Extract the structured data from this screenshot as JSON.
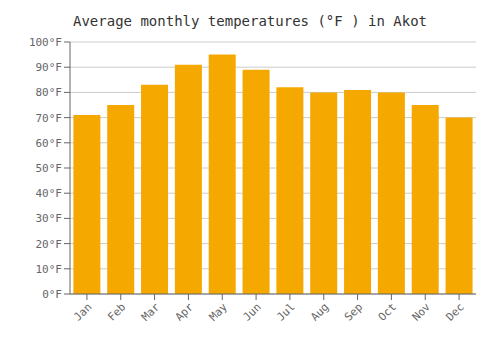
{
  "chart_data": {
    "type": "bar",
    "title": "Average monthly temperatures (°F ) in Akot",
    "categories": [
      "Jan",
      "Feb",
      "Mar",
      "Apr",
      "May",
      "Jun",
      "Jul",
      "Aug",
      "Sep",
      "Oct",
      "Nov",
      "Dec"
    ],
    "values": [
      71,
      75,
      83,
      91,
      95,
      89,
      82,
      80,
      81,
      80,
      75,
      70
    ],
    "color": "#F5A800",
    "ylim": [
      0,
      100
    ],
    "yticks": [
      {
        "value": 0,
        "label": "0°F"
      },
      {
        "value": 10,
        "label": "10°F"
      },
      {
        "value": 20,
        "label": "20°F"
      },
      {
        "value": 30,
        "label": "30°F"
      },
      {
        "value": 40,
        "label": "40°F"
      },
      {
        "value": 50,
        "label": "50°F"
      },
      {
        "value": 60,
        "label": "60°F"
      },
      {
        "value": 70,
        "label": "70°F"
      },
      {
        "value": 80,
        "label": "80°F"
      },
      {
        "value": 90,
        "label": "90°F"
      },
      {
        "value": 100,
        "label": "100°F"
      }
    ],
    "grid": true
  }
}
